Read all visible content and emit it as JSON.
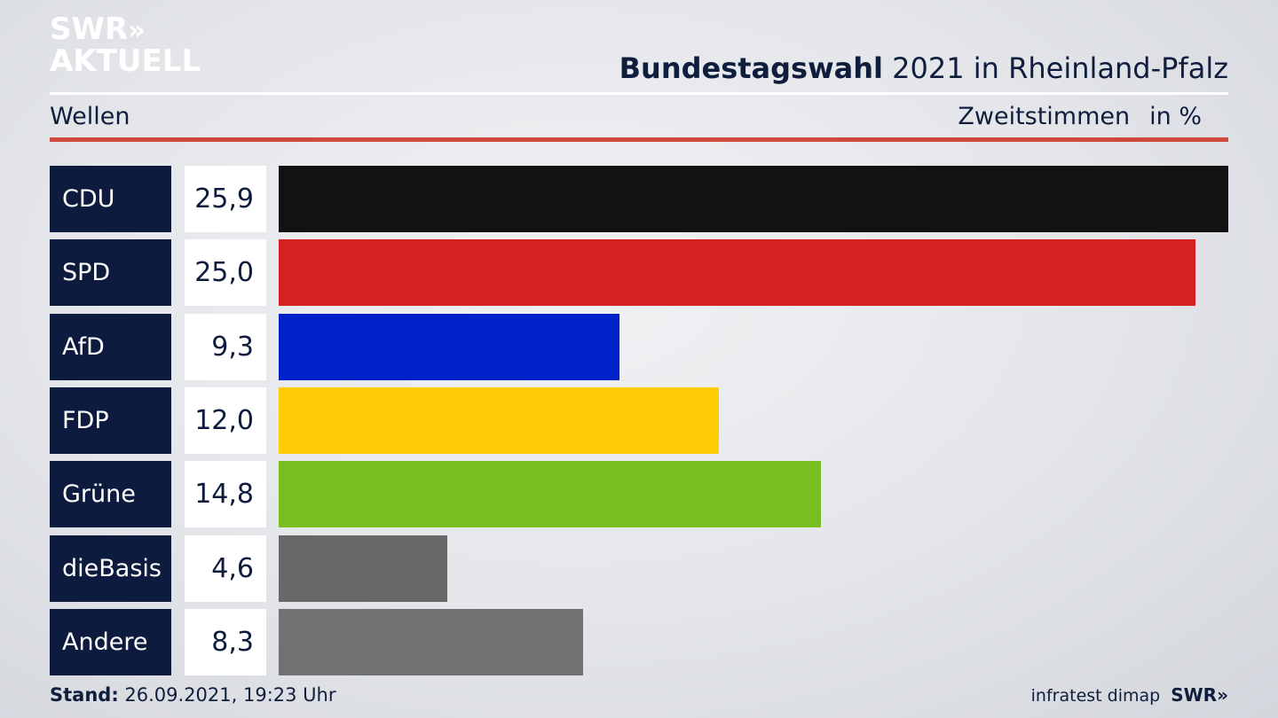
{
  "brand": {
    "line1": "SWR",
    "line1_chevrons": "»",
    "line2": "AKTUELL"
  },
  "header": {
    "title_bold": "Bundestagswahl",
    "title_rest": " 2021 in Rheinland-Pfalz",
    "subtitle": "Wellen",
    "measure": "Zweitstimmen",
    "unit": "in %"
  },
  "chart_data": {
    "type": "bar",
    "orientation": "horizontal",
    "categories": [
      "CDU",
      "SPD",
      "AfD",
      "FDP",
      "Grüne",
      "dieBasis",
      "Andere"
    ],
    "values": [
      25.9,
      25.0,
      9.3,
      12.0,
      14.8,
      4.6,
      8.3
    ],
    "value_labels": [
      "25,9",
      "25,0",
      "9,3",
      "12,0",
      "14,8",
      "4,6",
      "8,3"
    ],
    "colors": [
      "#121212",
      "#d72020",
      "#0021c8",
      "#ffcc06",
      "#78be20",
      "#686868",
      "#717171"
    ],
    "xlim": [
      0,
      25.9
    ],
    "grid": false,
    "legend": "none"
  },
  "footer": {
    "stand_label": "Stand:",
    "stand_value": " 26.09.2021, 19:23 Uhr",
    "source": "infratest dimap",
    "brand": "SWR»"
  }
}
